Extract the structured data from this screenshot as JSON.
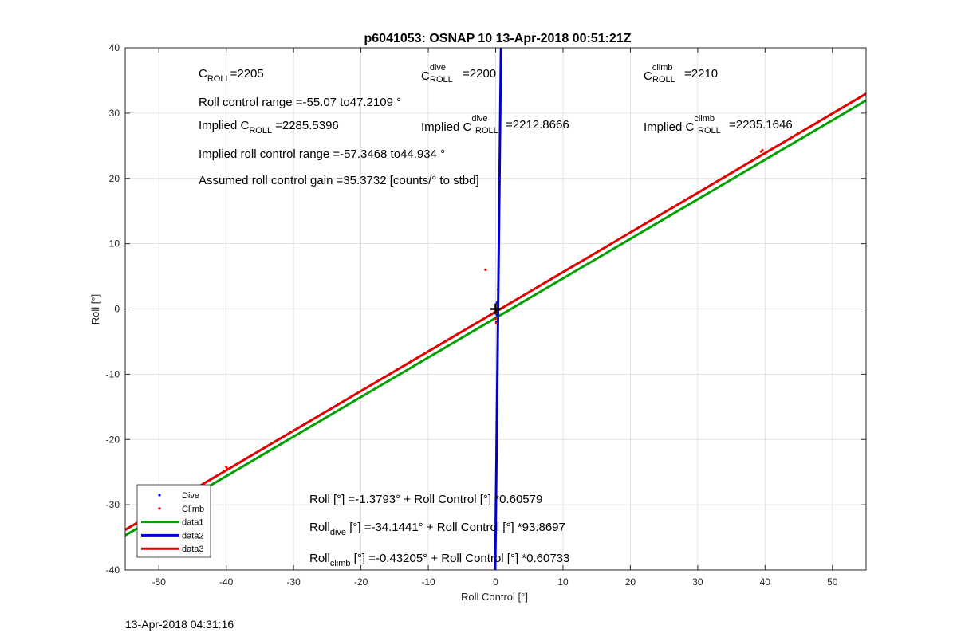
{
  "title": "p6041053: OSNAP 10 13-Apr-2018 00:51:21Z",
  "footer_timestamp": "13-Apr-2018 04:31:16",
  "annotations": {
    "c_roll_main": "C",
    "c_roll_sub": "ROLL",
    "c_roll_value": "=2205",
    "c_dive_main": "C",
    "c_dive_sup": "dive",
    "c_dive_sub": "ROLL",
    "c_dive_value": "=2200",
    "c_climb_main": "C",
    "c_climb_sup": "climb",
    "c_climb_sub": "ROLL",
    "c_climb_value": "=2210",
    "roll_control_range": "Roll control range =-55.07 to47.2109 °",
    "implied_c_prefix": "Implied C",
    "implied_c_sub": "ROLL",
    "implied_c_value": "=2285.5396",
    "implied_dive_prefix": "Implied C",
    "implied_dive_sup": "dive",
    "implied_dive_sub": "ROLL",
    "implied_dive_value": "=2212.8666",
    "implied_climb_prefix": "Implied C",
    "implied_climb_sup": "climb",
    "implied_climb_sub": "ROLL",
    "implied_climb_value": "=2235.1646",
    "implied_roll_range": "Implied roll control range =-57.3468 to44.934 °",
    "assumed_gain": "Assumed roll control gain =35.3732 [counts/° to stbd]",
    "eq_all": "Roll [°] =-1.3793° + Roll Control [°] *0.60579",
    "eq_dive_main": "Roll",
    "eq_dive_sub": "dive",
    "eq_dive_rest": " [°] =-34.1441° + Roll Control [°] *93.8697",
    "eq_climb_main": "Roll",
    "eq_climb_sub": "climb",
    "eq_climb_rest": " [°] =-0.43205° + Roll Control [°] *0.60733"
  },
  "colors": {
    "dive": "#0000ff",
    "climb": "#ff0000",
    "data1": "#00a000",
    "data2": "#0000c8",
    "data3": "#e00000",
    "grid": "#dcdcdc"
  },
  "chart_data": {
    "type": "line",
    "xlabel": "Roll Control [°]",
    "ylabel": "Roll [°]",
    "xlim": [
      -55,
      55
    ],
    "ylim": [
      -40,
      40
    ],
    "xticks": [
      -50,
      -40,
      -30,
      -20,
      -10,
      0,
      10,
      20,
      30,
      40,
      50
    ],
    "yticks": [
      -40,
      -30,
      -20,
      -10,
      0,
      10,
      20,
      30,
      40
    ],
    "grid": true,
    "legend_placement": "bottom-left",
    "legend": [
      "Dive",
      "Climb",
      "data1",
      "data2",
      "data3"
    ],
    "series": [
      {
        "name": "data1",
        "kind": "line",
        "x": [
          -55,
          55
        ],
        "y": [
          -34.698,
          31.939
        ]
      },
      {
        "name": "data2",
        "kind": "line",
        "x": [
          -0.0621,
          0.7902
        ],
        "y": [
          -40,
          40
        ]
      },
      {
        "name": "data3",
        "kind": "line",
        "x": [
          -55,
          55
        ],
        "y": [
          -33.835,
          32.971
        ]
      },
      {
        "name": "Dive",
        "kind": "scatter",
        "x": [
          0.1,
          0.2,
          0.3,
          0.2,
          0.35,
          0.5
        ],
        "y": [
          -2,
          -1,
          0,
          1,
          3,
          20
        ]
      },
      {
        "name": "Climb",
        "kind": "scatter",
        "x": [
          -40,
          -39.8,
          -1.5,
          0,
          0.1,
          39.6,
          39.4
        ],
        "y": [
          -24.2,
          -24.5,
          6,
          -1.5,
          -2.2,
          24.3,
          24.1
        ]
      }
    ],
    "marker": {
      "x": 0,
      "y": 0,
      "symbol": "+"
    }
  }
}
